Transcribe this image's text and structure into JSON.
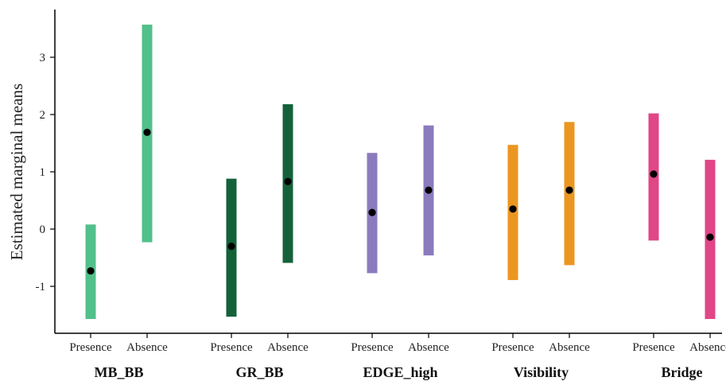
{
  "chart_data": {
    "type": "errorbar",
    "ylabel": "Estimated marginal means",
    "ylim": [
      -1.8,
      3.8
    ],
    "yticks": [
      -1,
      0,
      1,
      2,
      3
    ],
    "ytick_labels": [
      "-1",
      "0",
      "1",
      "2",
      "3"
    ],
    "legend": "none",
    "grid": false,
    "groups": [
      {
        "name": "MB_BB",
        "color": "#52c08b",
        "points": [
          {
            "category": "Presence",
            "mean": -0.73,
            "lower": -1.57,
            "upper": 0.08
          },
          {
            "category": "Absence",
            "mean": 1.69,
            "lower": -0.23,
            "upper": 3.57
          }
        ]
      },
      {
        "name": "GR_BB",
        "color": "#14613a",
        "points": [
          {
            "category": "Presence",
            "mean": -0.3,
            "lower": -1.53,
            "upper": 0.88
          },
          {
            "category": "Absence",
            "mean": 0.83,
            "lower": -0.59,
            "upper": 2.18
          }
        ]
      },
      {
        "name": "EDGE_high",
        "color": "#8b7bbd",
        "points": [
          {
            "category": "Presence",
            "mean": 0.29,
            "lower": -0.77,
            "upper": 1.33
          },
          {
            "category": "Absence",
            "mean": 0.68,
            "lower": -0.46,
            "upper": 1.81
          }
        ]
      },
      {
        "name": "Visibility",
        "color": "#eb9620",
        "points": [
          {
            "category": "Presence",
            "mean": 0.35,
            "lower": -0.89,
            "upper": 1.47
          },
          {
            "category": "Absence",
            "mean": 0.68,
            "lower": -0.63,
            "upper": 1.87
          }
        ]
      },
      {
        "name": "Bridge",
        "color": "#e14687",
        "points": [
          {
            "category": "Presence",
            "mean": 0.96,
            "lower": -0.2,
            "upper": 2.02
          },
          {
            "category": "Absence",
            "mean": -0.14,
            "lower": -1.57,
            "upper": 1.21
          }
        ]
      }
    ]
  }
}
